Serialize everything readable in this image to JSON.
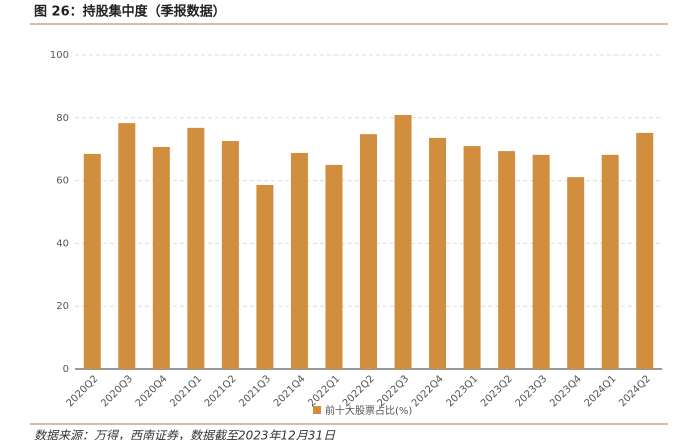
{
  "chart_data": {
    "type": "bar",
    "title": "图 26：持股集中度（季报数据）",
    "categories": [
      "2020Q2",
      "2020Q3",
      "2020Q4",
      "2021Q1",
      "2021Q2",
      "2021Q3",
      "2021Q4",
      "2022Q1",
      "2022Q2",
      "2022Q3",
      "2022Q4",
      "2023Q1",
      "2023Q2",
      "2023Q3",
      "2023Q4",
      "2024Q1",
      "2024Q2"
    ],
    "series": [
      {
        "name": "前十大股票占比(%)",
        "color": "#d08e3e",
        "values": [
          68.5,
          78.3,
          70.7,
          76.8,
          72.6,
          58.6,
          68.8,
          65.0,
          74.8,
          80.9,
          73.6,
          71.0,
          69.4,
          68.2,
          61.1,
          68.2,
          75.2
        ]
      }
    ],
    "ylim": [
      0,
      100
    ],
    "yticks": [
      0,
      20,
      40,
      60,
      80,
      100
    ],
    "grid": true,
    "legend": "bottom",
    "source": "数据来源：万得，西南证券，数据截至2023年12月31日"
  }
}
